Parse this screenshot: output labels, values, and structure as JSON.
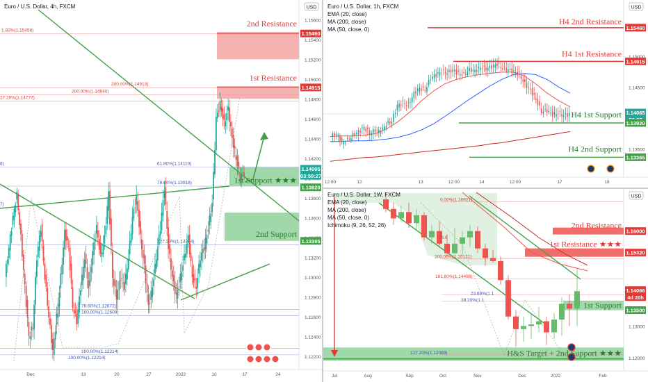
{
  "charts": [
    {
      "id": "main-4h",
      "header": [
        "Euro / U.S. Dollar, 4h, FXCM"
      ],
      "currency_badge": "USD",
      "y_ticks": [
        "1.15600",
        "1.15400",
        "1.15200",
        "1.15000",
        "1.14800",
        "1.14600",
        "1.14400",
        "1.14200",
        "1.14000",
        "1.13800",
        "1.13600",
        "1.13400",
        "1.13200",
        "1.13000",
        "1.12800",
        "1.12600",
        "1.12400",
        "1.12200"
      ],
      "x_ticks": [
        "Dec",
        "13",
        "20",
        "27",
        "2022",
        "10",
        "17",
        "24"
      ],
      "price_tags": [
        {
          "text": "1.15460",
          "color": "#e53935"
        },
        {
          "text": "1.14915",
          "color": "#e53935"
        },
        {
          "text": "1.14065",
          "color": "#26a69a"
        },
        {
          "text": "03:59:27",
          "color": "#26a69a"
        },
        {
          "text": "1.13920",
          "color": "#43a047"
        },
        {
          "text": "1.13365",
          "color": "#43a047"
        }
      ],
      "zone_labels": [
        {
          "text": "2nd Resistance",
          "color": "#e53935"
        },
        {
          "text": "1st Resistance",
          "color": "#e53935"
        },
        {
          "text": "1st Support ★★★",
          "color": "#2e7d32"
        },
        {
          "text": "2nd Support",
          "color": "#2e7d32"
        }
      ],
      "fib_labels": [
        "1.80%(1.15458)",
        "200.00%(1.14913)",
        "200.00%(1.14840)",
        "27.20%(1.14777)",
        "61.80%(1.14110)",
        "78.60%(1.13918)",
        "127.20%(1.13324)",
        "78.60%(1.12672)",
        "100.00%(1.12609)",
        "100.00%(1.12214)",
        "100.00%(1.12214)",
        "8)",
        "7)"
      ]
    },
    {
      "id": "h1",
      "header": [
        "Euro / U.S. Dollar, 1h, FXCM",
        "EMA (20, close)",
        "MA (200, close)",
        "MA (50, close, 0)"
      ],
      "currency_badge": "USD",
      "y_ticks": [
        "1.15000",
        "1.14500",
        "1.14000",
        "1.13500"
      ],
      "x_ticks": [
        "12:00",
        "12",
        "13",
        "12:00",
        "14",
        "12:00",
        "17",
        "18"
      ],
      "price_tags": [
        {
          "text": "1.15460",
          "color": "#e53935"
        },
        {
          "text": "1.14915",
          "color": "#e53935"
        },
        {
          "text": "1.14065",
          "color": "#26a69a"
        },
        {
          "text": "59:27",
          "color": "#26a69a"
        },
        {
          "text": "1.13920",
          "color": "#43a047"
        },
        {
          "text": "1.13365",
          "color": "#43a047"
        }
      ],
      "level_labels": [
        {
          "text": "H4 2nd Resistance",
          "color": "#e53935"
        },
        {
          "text": "H4 1st Resistance",
          "color": "#e53935"
        },
        {
          "text": "H4 1st Support",
          "color": "#2e7d32"
        },
        {
          "text": "H4 2nd Support",
          "color": "#2e7d32"
        }
      ]
    },
    {
      "id": "w1",
      "header": [
        "Euro / U.S. Dollar, 1W, FXCM",
        "EMA (20, close)",
        "MA (200, close)",
        "MA (50, close, 0)",
        "Ichimoku (9, 26, 52, 26)"
      ],
      "currency_badge": "USD",
      "y_ticks": [
        "1.13000",
        "1.12000"
      ],
      "x_ticks": [
        "Jul",
        "Aug",
        "Sep",
        "Oct",
        "Nov",
        "Dec",
        "2022",
        "Feb"
      ],
      "price_tags": [
        {
          "text": "1.16000",
          "color": "#e53935"
        },
        {
          "text": "1.15320",
          "color": "#e53935"
        },
        {
          "text": "1.14066",
          "color": "#e53935"
        },
        {
          "text": "4d 20h",
          "color": "#e53935"
        },
        {
          "text": "1.13500",
          "color": "#43a047"
        }
      ],
      "zone_labels": [
        {
          "text": "2nd Resistance",
          "color": "#e53935"
        },
        {
          "text": "1st Resistance ★★★",
          "color": "#e53935"
        },
        {
          "text": "1st Support",
          "color": "#2e7d32"
        },
        {
          "text": "H&S Target + 2nd Support ★★★",
          "color": "#2e7d32"
        }
      ],
      "fib_labels": [
        "0.00%(1.16921)",
        "78.6",
        "200.00%(1.15121)",
        "161.80%(1.14498)",
        "23.60%(1.1",
        "38.20%(1.1",
        "127.20%(1.12089)"
      ]
    }
  ],
  "chart_data": [
    {
      "type": "candlestick",
      "title": "Euro / U.S. Dollar, 4h, FXCM",
      "x_range": [
        "late Nov 2021",
        "24 Jan 2022"
      ],
      "ylim": [
        1.1215,
        1.157
      ],
      "last_price": 1.14065,
      "levels": [
        {
          "name": "2nd Resistance",
          "price": 1.1546,
          "kind": "resistance"
        },
        {
          "name": "1st Resistance",
          "price": 1.14915,
          "kind": "resistance"
        },
        {
          "name": "1st Support",
          "price": 1.1392,
          "kind": "support"
        },
        {
          "name": "2nd Support",
          "price": 1.13365,
          "kind": "support"
        }
      ],
      "fib_levels": [
        1.15458,
        1.14913,
        1.1484,
        1.14777,
        1.1411,
        1.13918,
        1.13324,
        1.12672,
        1.12609,
        1.12214
      ],
      "path": [
        1.13,
        1.133,
        1.136,
        1.1383,
        1.134,
        1.129,
        1.124,
        1.125,
        1.132,
        1.135,
        1.13,
        1.126,
        1.1225,
        1.126,
        1.13,
        1.1345,
        1.133,
        1.127,
        1.1255,
        1.129,
        1.132,
        1.129,
        1.1325,
        1.135,
        1.132,
        1.134,
        1.1385,
        1.13,
        1.128,
        1.13,
        1.129,
        1.132,
        1.136,
        1.138,
        1.134,
        1.131,
        1.127,
        1.129,
        1.132,
        1.135,
        1.139,
        1.133,
        1.13,
        1.128,
        1.13,
        1.132,
        1.134,
        1.13,
        1.129,
        1.132,
        1.133,
        1.135,
        1.1375,
        1.146,
        1.1475,
        1.1455,
        1.147,
        1.144,
        1.142,
        1.14,
        1.1406
      ]
    },
    {
      "type": "candlestick",
      "title": "Euro / U.S. Dollar, 1h, FXCM",
      "ylim": [
        1.131,
        1.1575
      ],
      "levels": [
        {
          "name": "H4 2nd Resistance",
          "price": 1.1546
        },
        {
          "name": "H4 1st Resistance",
          "price": 1.14915
        },
        {
          "name": "H4 1st Support",
          "price": 1.1392
        },
        {
          "name": "H4 2nd Support",
          "price": 1.13365
        }
      ],
      "last_price": 1.14065,
      "path": [
        1.137,
        1.1375,
        1.136,
        1.1365,
        1.1372,
        1.1378,
        1.1385,
        1.1375,
        1.138,
        1.1378,
        1.139,
        1.1395,
        1.142,
        1.1425,
        1.1422,
        1.144,
        1.1448,
        1.1445,
        1.1465,
        1.147,
        1.1475,
        1.1473,
        1.1478,
        1.1472,
        1.147,
        1.1478,
        1.1476,
        1.1482,
        1.148,
        1.1483,
        1.1487,
        1.148,
        1.1478,
        1.1475,
        1.147,
        1.1455,
        1.1445,
        1.143,
        1.141,
        1.1412,
        1.1405,
        1.1408,
        1.1404,
        1.1406
      ],
      "series": [
        {
          "name": "EMA (20, close)",
          "color": "#ef5350",
          "values": [
            1.137,
            1.1371,
            1.1371,
            1.1372,
            1.1375,
            1.1383,
            1.1395,
            1.141,
            1.1428,
            1.1443,
            1.1455,
            1.1462,
            1.1467,
            1.147,
            1.1472,
            1.1474,
            1.1474,
            1.1468,
            1.1455,
            1.144,
            1.1428,
            1.1418
          ]
        },
        {
          "name": "MA (50, close, 0)",
          "color": "#2962ff",
          "values": [
            1.1362,
            1.1362,
            1.1363,
            1.1363,
            1.1364,
            1.1366,
            1.1369,
            1.1374,
            1.1381,
            1.139,
            1.1402,
            1.1415,
            1.1428,
            1.144,
            1.1452,
            1.1462,
            1.147,
            1.1472,
            1.147,
            1.1462,
            1.145,
            1.144
          ]
        },
        {
          "name": "MA (200, close)",
          "color": "#c62828",
          "values": [
            1.133,
            1.1332,
            1.1334,
            1.1336,
            1.1337,
            1.1339,
            1.1341,
            1.1343,
            1.1345,
            1.1347,
            1.1349,
            1.1351,
            1.1353,
            1.1355,
            1.1358,
            1.136,
            1.1363,
            1.1366,
            1.1369,
            1.1372,
            1.1375,
            1.1378
          ]
        }
      ]
    },
    {
      "type": "candlestick",
      "title": "Euro / U.S. Dollar, 1W, FXCM",
      "ylim": [
        1.118,
        1.172
      ],
      "levels": [
        {
          "name": "2nd Resistance",
          "price": 1.16,
          "kind": "resistance"
        },
        {
          "name": "1st Resistance ★★★",
          "price": 1.1532,
          "kind": "resistance"
        },
        {
          "name": "1st Support",
          "price": 1.135,
          "kind": "support"
        },
        {
          "name": "H&S Target + 2nd Support ★★★",
          "price": 1.1205,
          "kind": "support"
        }
      ],
      "last_price": 1.14066,
      "fib_levels": [
        1.16921,
        1.15121,
        1.14498,
        1.12089
      ],
      "candles": [
        {
          "o": 1.17,
          "h": 1.172,
          "l": 1.166,
          "c": 1.167
        },
        {
          "o": 1.167,
          "h": 1.169,
          "l": 1.162,
          "c": 1.164
        },
        {
          "o": 1.164,
          "h": 1.168,
          "l": 1.163,
          "c": 1.166
        },
        {
          "o": 1.166,
          "h": 1.169,
          "l": 1.161,
          "c": 1.1625
        },
        {
          "o": 1.1625,
          "h": 1.167,
          "l": 1.16,
          "c": 1.165
        },
        {
          "o": 1.165,
          "h": 1.166,
          "l": 1.157,
          "c": 1.158
        },
        {
          "o": 1.158,
          "h": 1.162,
          "l": 1.156,
          "c": 1.16
        },
        {
          "o": 1.16,
          "h": 1.163,
          "l": 1.155,
          "c": 1.156
        },
        {
          "o": 1.156,
          "h": 1.159,
          "l": 1.152,
          "c": 1.153
        },
        {
          "o": 1.153,
          "h": 1.161,
          "l": 1.1525,
          "c": 1.156
        },
        {
          "o": 1.156,
          "h": 1.16,
          "l": 1.152,
          "c": 1.158
        },
        {
          "o": 1.158,
          "h": 1.162,
          "l": 1.155,
          "c": 1.16
        },
        {
          "o": 1.16,
          "h": 1.1615,
          "l": 1.153,
          "c": 1.1545
        },
        {
          "o": 1.1545,
          "h": 1.156,
          "l": 1.149,
          "c": 1.1515
        },
        {
          "o": 1.1515,
          "h": 1.154,
          "l": 1.15,
          "c": 1.1505
        },
        {
          "o": 1.1505,
          "h": 1.152,
          "l": 1.143,
          "c": 1.1445
        },
        {
          "o": 1.1445,
          "h": 1.146,
          "l": 1.132,
          "c": 1.133
        },
        {
          "o": 1.133,
          "h": 1.135,
          "l": 1.1235,
          "c": 1.129
        },
        {
          "o": 1.129,
          "h": 1.133,
          "l": 1.125,
          "c": 1.13
        },
        {
          "o": 1.13,
          "h": 1.134,
          "l": 1.126,
          "c": 1.1305
        },
        {
          "o": 1.1305,
          "h": 1.136,
          "l": 1.128,
          "c": 1.1315
        },
        {
          "o": 1.1315,
          "h": 1.133,
          "l": 1.124,
          "c": 1.128
        },
        {
          "o": 1.128,
          "h": 1.134,
          "l": 1.126,
          "c": 1.132
        },
        {
          "o": 1.132,
          "h": 1.139,
          "l": 1.127,
          "c": 1.137
        },
        {
          "o": 1.137,
          "h": 1.14,
          "l": 1.13,
          "c": 1.1355
        },
        {
          "o": 1.1355,
          "h": 1.148,
          "l": 1.13,
          "c": 1.141
        }
      ]
    }
  ]
}
